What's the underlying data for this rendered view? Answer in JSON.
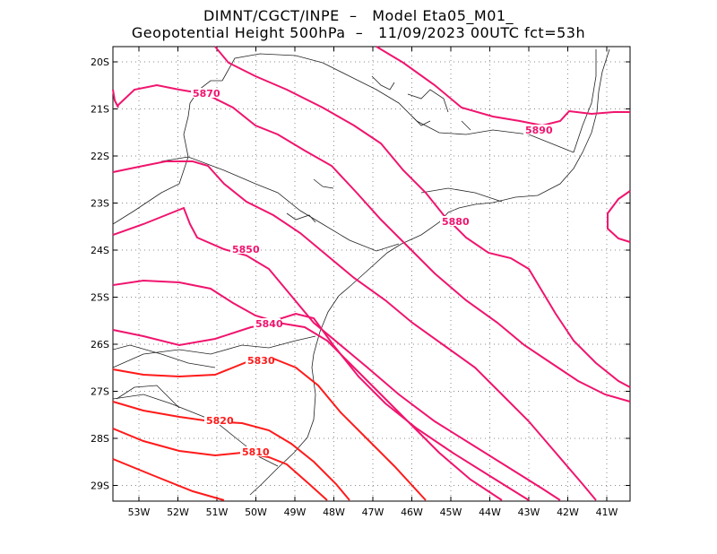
{
  "title": {
    "line1": "DIMNT/CGCT/INPE  –   Model Eta05_M01_",
    "line2": "Geopotential Height 500hPa  –   11/09/2023 00UTC fct=53h"
  },
  "axes": {
    "lat_labels": [
      "20S",
      "21S",
      "22S",
      "23S",
      "24S",
      "25S",
      "26S",
      "27S",
      "28S",
      "29S"
    ],
    "lon_labels": [
      "53W",
      "52W",
      "51W",
      "50W",
      "49W",
      "48W",
      "47W",
      "46W",
      "45W",
      "44W",
      "43W",
      "42W",
      "41W"
    ]
  },
  "contours": {
    "labels": [
      "5810",
      "5820",
      "5830",
      "5840",
      "5850",
      "5870",
      "5880",
      "5890"
    ],
    "color_warm": "#ff1a1a",
    "color_cool": "#f0146e"
  },
  "map": {
    "lon_range": [
      -53.7,
      -40.5
    ],
    "lat_range": [
      -29.4,
      -19.7
    ],
    "grid": true,
    "coastline_color": "#000000"
  }
}
